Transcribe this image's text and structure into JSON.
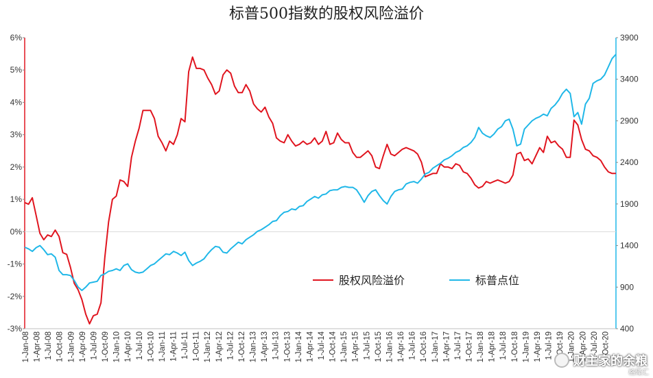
{
  "chart_data": {
    "type": "line",
    "title": "标普500指数的股权风险溢价",
    "y_left": {
      "min": -3,
      "max": 6,
      "ticks": [
        -3,
        -2,
        -1,
        0,
        1,
        2,
        3,
        4,
        5,
        6
      ],
      "tick_labels": [
        "-3%",
        "-2%",
        "-1%",
        "0%",
        "1%",
        "2%",
        "3%",
        "4%",
        "5%",
        "6%"
      ]
    },
    "y_right": {
      "min": 400,
      "max": 3900,
      "ticks": [
        400,
        900,
        1400,
        1900,
        2400,
        2900,
        3400,
        3900
      ],
      "tick_labels": [
        "400",
        "900",
        "1400",
        "1900",
        "2400",
        "2900",
        "3400",
        "3900"
      ]
    },
    "x_ticks": [
      "1-Jan-08",
      "1-Apr-08",
      "1-Jul-08",
      "1-Oct-08",
      "1-Jan-09",
      "1-Apr-09",
      "1-Jul-09",
      "1-Oct-09",
      "1-Jan-10",
      "1-Apr-10",
      "1-Jul-10",
      "1-Oct-10",
      "1-Jan-11",
      "1-Apr-11",
      "1-Jul-11",
      "1-Oct-11",
      "1-Jan-12",
      "1-Apr-12",
      "1-Jul-12",
      "1-Oct-12",
      "1-Jan-13",
      "1-Apr-13",
      "1-Jul-13",
      "1-Oct-13",
      "1-Jan-14",
      "1-Apr-14",
      "1-Jul-14",
      "1-Oct-14",
      "1-Jan-15",
      "1-Apr-15",
      "1-Jul-15",
      "1-Oct-15",
      "1-Jan-16",
      "1-Apr-16",
      "1-Jul-16",
      "1-Oct-16",
      "1-Jan-17",
      "1-Apr-17",
      "1-Jul-17",
      "1-Oct-17",
      "1-Jan-18",
      "1-Apr-18",
      "1-Jul-18",
      "1-Oct-18",
      "1-Jan-19",
      "1-Apr-19",
      "1-Jul-19",
      "1-Oct-19",
      "1-Jan-20",
      "1-Apr-20",
      "1-Jul-20",
      "1-Oct-20"
    ],
    "legend": {
      "position": "center-right"
    },
    "series": [
      {
        "name": "股权风险溢价",
        "axis": "left",
        "color": "#e0141e",
        "values": [
          0.9,
          0.85,
          1.05,
          0.5,
          -0.05,
          -0.25,
          -0.1,
          -0.15,
          0.05,
          -0.15,
          -0.65,
          -0.7,
          -1.1,
          -1.6,
          -1.8,
          -2.1,
          -2.55,
          -2.85,
          -2.6,
          -2.55,
          -2.2,
          -0.8,
          0.3,
          1.0,
          1.1,
          1.6,
          1.55,
          1.4,
          2.3,
          2.8,
          3.2,
          3.75,
          3.75,
          3.75,
          3.5,
          2.95,
          2.75,
          2.5,
          2.8,
          2.7,
          3.0,
          3.5,
          3.4,
          4.95,
          5.4,
          5.05,
          5.05,
          5.0,
          4.75,
          4.55,
          4.25,
          4.35,
          4.85,
          5.0,
          4.9,
          4.5,
          4.3,
          4.3,
          4.55,
          4.35,
          3.95,
          3.8,
          3.7,
          3.85,
          3.55,
          3.35,
          2.9,
          2.8,
          2.75,
          3.0,
          2.8,
          2.65,
          2.7,
          2.8,
          2.7,
          2.75,
          2.9,
          2.7,
          2.8,
          3.1,
          2.7,
          2.75,
          3.05,
          2.85,
          2.75,
          2.75,
          2.45,
          2.3,
          2.3,
          2.4,
          2.5,
          2.35,
          2.0,
          1.95,
          2.35,
          2.7,
          2.4,
          2.35,
          2.45,
          2.55,
          2.6,
          2.55,
          2.5,
          2.4,
          2.15,
          1.7,
          1.75,
          1.8,
          1.8,
          2.1,
          2.0,
          2.0,
          1.95,
          2.1,
          2.05,
          1.85,
          1.8,
          1.65,
          1.45,
          1.35,
          1.4,
          1.55,
          1.5,
          1.55,
          1.6,
          1.55,
          1.5,
          1.55,
          1.75,
          2.4,
          2.45,
          2.2,
          2.25,
          2.1,
          2.35,
          2.6,
          2.45,
          2.95,
          2.75,
          2.8,
          2.65,
          2.55,
          2.3,
          2.3,
          3.45,
          3.3,
          2.85,
          2.55,
          2.5,
          2.35,
          2.3,
          2.2,
          2.0,
          1.85,
          1.8,
          1.8
        ]
      },
      {
        "name": "标普点位",
        "axis": "right",
        "color": "#1fb7e8",
        "values": [
          1380,
          1360,
          1330,
          1375,
          1400,
          1350,
          1290,
          1300,
          1260,
          1100,
          1050,
          1050,
          1040,
          980,
          900,
          860,
          900,
          950,
          960,
          970,
          1040,
          1060,
          1090,
          1100,
          1120,
          1100,
          1160,
          1180,
          1110,
          1080,
          1070,
          1080,
          1120,
          1160,
          1180,
          1220,
          1260,
          1300,
          1290,
          1330,
          1310,
          1280,
          1320,
          1220,
          1160,
          1190,
          1210,
          1240,
          1300,
          1350,
          1390,
          1380,
          1320,
          1310,
          1360,
          1400,
          1440,
          1420,
          1470,
          1500,
          1530,
          1570,
          1590,
          1620,
          1650,
          1690,
          1700,
          1760,
          1800,
          1810,
          1840,
          1830,
          1870,
          1880,
          1930,
          1960,
          1990,
          1970,
          2010,
          2020,
          2060,
          2070,
          2070,
          2100,
          2110,
          2100,
          2100,
          2070,
          2000,
          1920,
          2000,
          2050,
          2070,
          2000,
          1940,
          1900,
          1990,
          2050,
          2070,
          2080,
          2140,
          2160,
          2170,
          2150,
          2200,
          2260,
          2280,
          2330,
          2360,
          2390,
          2430,
          2450,
          2480,
          2520,
          2540,
          2580,
          2600,
          2640,
          2700,
          2820,
          2750,
          2720,
          2700,
          2740,
          2800,
          2830,
          2900,
          2920,
          2800,
          2600,
          2620,
          2800,
          2850,
          2900,
          2930,
          2950,
          2980,
          2960,
          3050,
          3090,
          3150,
          3230,
          3280,
          3230,
          2950,
          3000,
          2860,
          3100,
          3170,
          3350,
          3380,
          3400,
          3450,
          3550,
          3650,
          3700
        ]
      }
    ]
  },
  "watermark": {
    "text": "财主家的余粮",
    "subtext": "格隆汇"
  }
}
